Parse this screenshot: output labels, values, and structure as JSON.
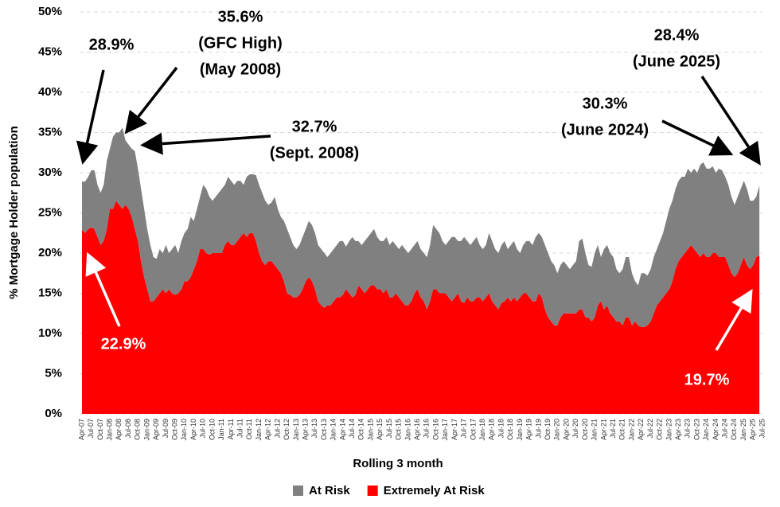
{
  "chart_data": {
    "type": "stacked-area",
    "y_axis_label": "% Mortgage Holder population",
    "x_axis_label": "Rolling 3 month",
    "ylim": [
      0,
      50
    ],
    "yticks": [
      {
        "value": 0,
        "label": "0%"
      },
      {
        "value": 5,
        "label": "5%"
      },
      {
        "value": 10,
        "label": "10%"
      },
      {
        "value": 15,
        "label": "15%"
      },
      {
        "value": 20,
        "label": "20%"
      },
      {
        "value": 25,
        "label": "25%"
      },
      {
        "value": 30,
        "label": "30%"
      },
      {
        "value": 35,
        "label": "35%"
      },
      {
        "value": 40,
        "label": "40%"
      },
      {
        "value": 45,
        "label": "45%"
      },
      {
        "value": 50,
        "label": "50%"
      }
    ],
    "grid": true,
    "categories": [
      "Apr-07",
      null,
      null,
      "Jul-07",
      null,
      null,
      "Oct-07",
      null,
      null,
      "Jan-08",
      null,
      null,
      "Apr-08",
      null,
      null,
      "Jul-08",
      null,
      null,
      "Oct-08",
      null,
      null,
      "Jan-09",
      null,
      null,
      "Apr-09",
      null,
      null,
      "Jul-09",
      null,
      null,
      "Oct-09",
      null,
      null,
      "Jan-10",
      null,
      null,
      "Apr-10",
      null,
      null,
      "Jul-10",
      null,
      null,
      "Oct-10",
      null,
      null,
      "Jan-11",
      null,
      null,
      "Apr-11",
      null,
      null,
      "Jul-11",
      null,
      null,
      "Oct-11",
      null,
      null,
      "Jan-12",
      null,
      null,
      "Apr-12",
      null,
      null,
      "Jul-12",
      null,
      null,
      "Oct-12",
      null,
      null,
      "Jan-13",
      null,
      null,
      "Apr-13",
      null,
      null,
      "Jul-13",
      null,
      null,
      "Oct-13",
      null,
      null,
      "Jan-14",
      null,
      null,
      "Apr-14",
      null,
      null,
      "Jul-14",
      null,
      null,
      "Oct-14",
      null,
      null,
      "Jan-15",
      null,
      null,
      "Apr-15",
      null,
      null,
      "Jul-15",
      null,
      null,
      "Oct-15",
      null,
      null,
      "Jan-16",
      null,
      null,
      "Apr-16",
      null,
      null,
      "Jul-16",
      null,
      null,
      "Oct-16",
      null,
      null,
      "Jan-17",
      null,
      null,
      "Apr-17",
      null,
      null,
      "Jul-17",
      null,
      null,
      "Oct-17",
      null,
      null,
      "Jan-18",
      null,
      null,
      "Apr-18",
      null,
      null,
      "Jul-18",
      null,
      null,
      "Oct-18",
      null,
      null,
      "Jan-19",
      null,
      null,
      "Apr-19",
      null,
      null,
      "Jul-19",
      null,
      null,
      "Oct-19",
      null,
      null,
      "Jan-20",
      null,
      null,
      "Apr-20",
      null,
      null,
      "Jul-20",
      null,
      null,
      "Oct-20",
      null,
      null,
      "Jan-21",
      null,
      null,
      "Apr-21",
      null,
      null,
      "Jul-21",
      null,
      null,
      "Oct-21",
      null,
      null,
      "Jan-22",
      null,
      null,
      "Apr-22",
      null,
      null,
      "Jul-22",
      null,
      null,
      "Oct-22",
      null,
      null,
      "Jan-23",
      null,
      null,
      "Apr-23",
      null,
      null,
      "Jul-23",
      null,
      null,
      "Oct-23",
      null,
      null,
      "Jan-24",
      null,
      null,
      "Apr-24",
      null,
      null,
      "Jul-24",
      null,
      null,
      "Oct-24",
      null,
      null,
      "Jan-25",
      null,
      null,
      "Apr-25",
      null,
      null,
      "Jul-25"
    ],
    "series": [
      {
        "name": "At Risk",
        "color": "#808080",
        "values": [
          6.0,
          6.4,
          6.5,
          7.1,
          7.3,
          6.5,
          6.5,
          7.0,
          8.5,
          7.5,
          9.0,
          8.5,
          9.0,
          10.1,
          8.0,
          8.0,
          8.5,
          9.7,
          9.0,
          9.0,
          8.5,
          7.5,
          7.0,
          5.5,
          4.8,
          5.5,
          4.5,
          6.0,
          4.5,
          5.5,
          6.2,
          5.0,
          6.0,
          6.0,
          6.5,
          7.5,
          6.0,
          6.5,
          6.5,
          8.0,
          8.0,
          7.2,
          6.5,
          7.0,
          7.5,
          8.0,
          7.5,
          8.0,
          8.0,
          7.5,
          7.5,
          7.0,
          6.0,
          7.5,
          7.3,
          7.3,
          8.2,
          8.5,
          8.5,
          8.0,
          7.0,
          7.3,
          8.5,
          7.5,
          7.0,
          7.5,
          8.0,
          7.2,
          6.5,
          6.0,
          6.2,
          6.5,
          6.5,
          7.0,
          7.0,
          7.0,
          7.0,
          7.0,
          6.8,
          6.0,
          6.5,
          6.5,
          6.5,
          7.0,
          6.7,
          5.3,
          6.5,
          7.5,
          6.7,
          5.5,
          5.5,
          6.5,
          6.5,
          6.5,
          7.0,
          6.5,
          6.0,
          6.5,
          6.5,
          6.5,
          7.0,
          6.0,
          6.0,
          7.0,
          7.0,
          6.5,
          6.5,
          6.0,
          6.0,
          6.0,
          6.0,
          6.5,
          7.0,
          8.0,
          7.5,
          7.5,
          6.5,
          6.0,
          7.0,
          8.0,
          7.5,
          6.5,
          7.5,
          8.2,
          7.0,
          7.0,
          7.5,
          7.5,
          6.5,
          6.5,
          6.5,
          7.5,
          7.5,
          7.0,
          7.0,
          7.2,
          7.5,
          6.0,
          7.0,
          7.0,
          6.5,
          5.5,
          6.0,
          6.5,
          7.0,
          7.0,
          8.0,
          7.5,
          7.5,
          8.0,
          8.0,
          7.5,
          7.5,
          6.5,
          6.5,
          6.5,
          6.0,
          5.5,
          6.0,
          6.5,
          8.5,
          8.8,
          8.0,
          6.5,
          6.8,
          8.0,
          7.5,
          5.5,
          7.5,
          7.5,
          7.5,
          7.5,
          6.5,
          6.0,
          7.0,
          7.5,
          7.5,
          6.5,
          5.0,
          5.0,
          6.7,
          6.7,
          6.2,
          6.5,
          7.0,
          7.0,
          7.5,
          8.0,
          9.0,
          10.0,
          10.0,
          10.0,
          10.0,
          10.0,
          9.5,
          10.0,
          9.0,
          10.0,
          10.0,
          11.5,
          11.3,
          11.0,
          11.0,
          10.8,
          10.0,
          11.0,
          10.8,
          10.0,
          10.0,
          9.5,
          9.0,
          9.5,
          9.5,
          9.5,
          9.5,
          8.5,
          8.0,
          7.5,
          8.7,
          null
        ]
      },
      {
        "name": "Extremely At Risk",
        "color": "#ff0000",
        "values": [
          22.9,
          22.5,
          23,
          23.2,
          23,
          22,
          21,
          21.5,
          23,
          25.5,
          25.5,
          26.5,
          26,
          25.5,
          26,
          25.5,
          24.5,
          23,
          21.5,
          19,
          17,
          15.5,
          14,
          14,
          14.5,
          15,
          15.5,
          15,
          15.5,
          15,
          14.8,
          15,
          15.5,
          16.5,
          16.5,
          17,
          18,
          19,
          20.5,
          20.5,
          20,
          19.8,
          20,
          20,
          20,
          20,
          21,
          21.5,
          21,
          21,
          21.5,
          22,
          22.5,
          22,
          22.5,
          22.5,
          21.5,
          20,
          19,
          18.5,
          19,
          19,
          18.5,
          18,
          17.5,
          16.5,
          15,
          14.8,
          14.5,
          14.5,
          14.8,
          15.5,
          16.5,
          17,
          16.5,
          15.5,
          14,
          13.5,
          13.2,
          13.5,
          13.5,
          14,
          14.5,
          14.5,
          14.8,
          15.5,
          15,
          14.5,
          14.8,
          16,
          15.5,
          15,
          15.5,
          16,
          16,
          15.5,
          15.5,
          15,
          15.5,
          14.5,
          14.5,
          15,
          14.5,
          14,
          13.5,
          13.5,
          14,
          15,
          15.5,
          14.5,
          14,
          13,
          14,
          15.5,
          15.5,
          15,
          15,
          15,
          14.5,
          14,
          14.5,
          15,
          14,
          13.8,
          14.5,
          14,
          14,
          14.5,
          14.5,
          14,
          14.5,
          15,
          14,
          13.5,
          13,
          13.8,
          14,
          14.5,
          14,
          14.5,
          14,
          14.5,
          15,
          15,
          14.5,
          14,
          14,
          15,
          14.5,
          13,
          12,
          11.5,
          11,
          11,
          12,
          12.5,
          12.5,
          12.5,
          12.5,
          12.5,
          13,
          13,
          12,
          12,
          11.5,
          12,
          13.5,
          14,
          13,
          13.5,
          12.5,
          12,
          11.5,
          11.5,
          11,
          12,
          12,
          11,
          11.5,
          11,
          10.8,
          10.8,
          11,
          11.5,
          12.5,
          13.5,
          14,
          14.5,
          15,
          15.5,
          16.5,
          18,
          19,
          19.5,
          20,
          20.5,
          21,
          20.5,
          20,
          19.5,
          20,
          19.5,
          19.5,
          20,
          20,
          19.5,
          19.5,
          19.5,
          18.5,
          17.5,
          17,
          17.5,
          18.5,
          19.5,
          18.5,
          18,
          18.5,
          19.5,
          19.7,
          null
        ]
      }
    ],
    "annotations": [
      {
        "lines": [
          "28.9%"
        ],
        "color": "#000000"
      },
      {
        "lines": [
          "35.6%",
          "(GFC High)",
          "(May 2008)"
        ],
        "color": "#000000"
      },
      {
        "lines": [
          "32.7%",
          "(Sept. 2008)"
        ],
        "color": "#000000"
      },
      {
        "lines": [
          "28.4%",
          "(June 2025)"
        ],
        "color": "#000000"
      },
      {
        "lines": [
          "30.3%",
          "(June 2024)"
        ],
        "color": "#000000"
      },
      {
        "lines": [
          "22.9%"
        ],
        "color": "#ffffff"
      },
      {
        "lines": [
          "19.7%"
        ],
        "color": "#ffffff"
      }
    ]
  }
}
